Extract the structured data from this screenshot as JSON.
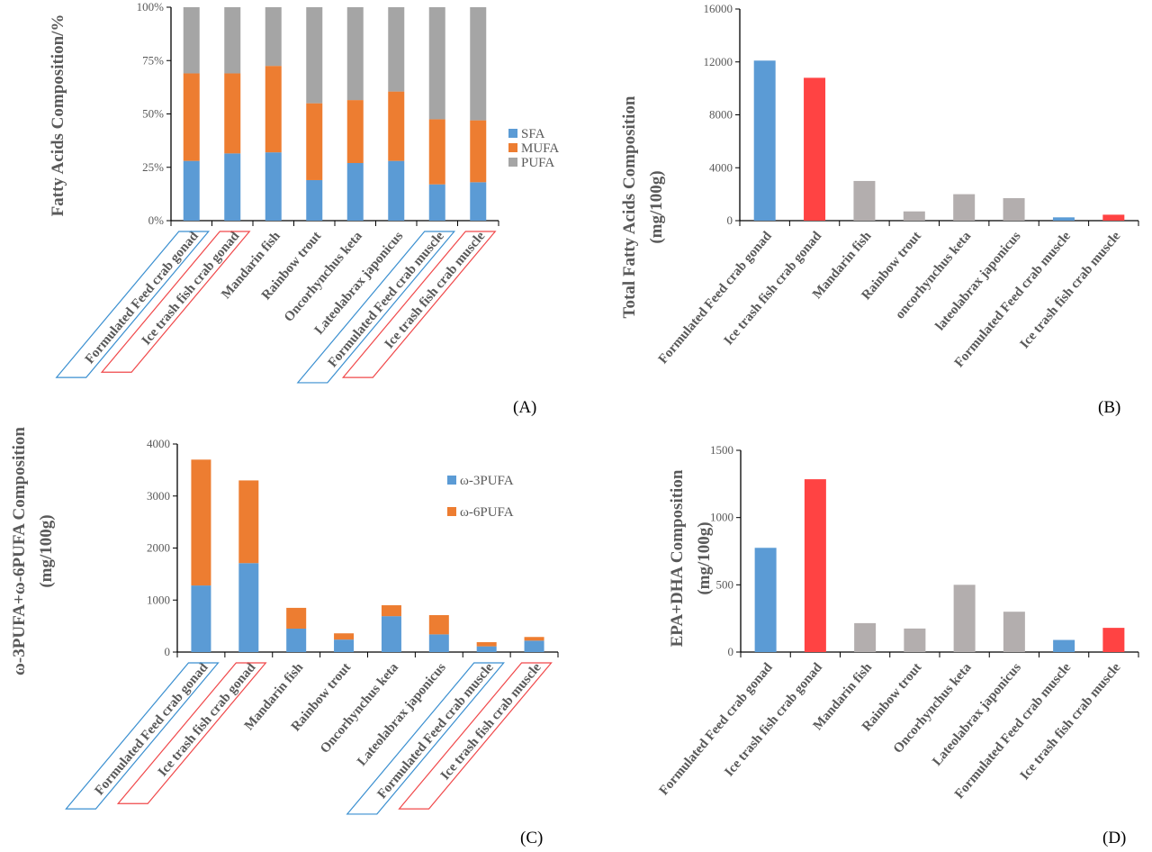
{
  "colors": {
    "blue": "#5B9BD5",
    "orange": "#ED7D31",
    "gray": "#A5A5A5",
    "red": "#FF4343",
    "lightgray": "#B3AEAE",
    "label_box_blue": "#3A8FD0",
    "label_box_red": "#F0484A"
  },
  "chart_data": [
    {
      "panel": "(A)",
      "type": "bar",
      "stacked": true,
      "percent": true,
      "ylabel": [
        "Fatty Acids Composition/%"
      ],
      "yticks": [
        "0%",
        "25%",
        "50%",
        "75%",
        "100%"
      ],
      "ylim": [
        0,
        100
      ],
      "categories": [
        "Formulated Feed crab gonad",
        "Ice trash fish crab gonad",
        "Mandarin fish",
        "Rainbow trout",
        "Oncorhynchus keta",
        "Lateolabrax japonicus",
        "Formulated Feed crab muscle",
        "Ice trash fish crab muscle"
      ],
      "highlight": [
        "blue",
        "red",
        null,
        null,
        null,
        null,
        "blue",
        "red"
      ],
      "legend": "right",
      "series": [
        {
          "name": "SFA",
          "color": "blue",
          "values": [
            28,
            31.5,
            32,
            19,
            27,
            28,
            17,
            18
          ]
        },
        {
          "name": "MUFA",
          "color": "orange",
          "values": [
            41,
            37.5,
            40.5,
            36,
            29.5,
            32.5,
            30.5,
            29
          ]
        },
        {
          "name": "PUFA",
          "color": "gray",
          "values": [
            31,
            31,
            27.5,
            45,
            43.5,
            39.5,
            52.5,
            53
          ]
        }
      ]
    },
    {
      "panel": "(B)",
      "type": "bar",
      "stacked": false,
      "ylabel": [
        "Total  Fatty Acids Composition",
        "(mg/100g)"
      ],
      "yticks": [
        "0",
        "4000",
        "8000",
        "12000",
        "16000"
      ],
      "ylim": [
        0,
        16000
      ],
      "categories": [
        "Formulated Feed crab gonad",
        "Ice trash fish crab gonad",
        "Mandarin fish",
        "Rainbow trout",
        "oncorhynchus keta",
        "lateolabrax japonicus",
        "Formulated Feed crab muscle",
        "Ice trash fish crab muscle"
      ],
      "bar_colors": [
        "blue",
        "red",
        "lightgray",
        "lightgray",
        "lightgray",
        "lightgray",
        "blue",
        "red"
      ],
      "series": [
        {
          "values": [
            12100,
            10800,
            3000,
            700,
            2000,
            1700,
            250,
            450
          ]
        }
      ]
    },
    {
      "panel": "(C)",
      "type": "bar",
      "stacked": true,
      "ylabel": [
        "ω-3PUFA+ω-6PUFA Composition",
        "(mg/100g)"
      ],
      "yticks": [
        "0",
        "1000",
        "2000",
        "3000",
        "4000"
      ],
      "ylim": [
        0,
        4000
      ],
      "categories": [
        "Formulated Feed crab gonad",
        "Ice trash fish crab gonad",
        "Mandarin fish",
        "Rainbow trout",
        "Oncorhynchus keta",
        "Lateolabrax japonicus",
        "Formulated Feed crab muscle",
        "Ice trash fish crab muscle"
      ],
      "highlight": [
        "blue",
        "red",
        null,
        null,
        null,
        null,
        "blue",
        "red"
      ],
      "legend": "top-right",
      "series": [
        {
          "name": "ω-3PUFA",
          "color": "blue",
          "values": [
            1280,
            1710,
            450,
            240,
            690,
            340,
            110,
            220
          ]
        },
        {
          "name": "ω-6PUFA",
          "color": "orange",
          "values": [
            2420,
            1590,
            400,
            120,
            210,
            370,
            80,
            70
          ]
        }
      ]
    },
    {
      "panel": "(D)",
      "type": "bar",
      "stacked": false,
      "ylabel": [
        "EPA+DHA Composition",
        "(mg/100g)"
      ],
      "yticks": [
        "0",
        "500",
        "1000",
        "1500"
      ],
      "ylim": [
        0,
        1500
      ],
      "categories": [
        "Formulated Feed crab gonad",
        "Ice trash fish crab gonad",
        "Mandarin fish",
        "Rainbow trout",
        "Oncorhynchus keta",
        "Lateolabrax japonicus",
        "Formulated Feed crab muscle",
        "Ice trash fish crab muscle"
      ],
      "bar_colors": [
        "blue",
        "red",
        "lightgray",
        "lightgray",
        "lightgray",
        "lightgray",
        "blue",
        "red"
      ],
      "series": [
        {
          "values": [
            775,
            1285,
            215,
            175,
            500,
            300,
            90,
            180
          ]
        }
      ]
    }
  ]
}
